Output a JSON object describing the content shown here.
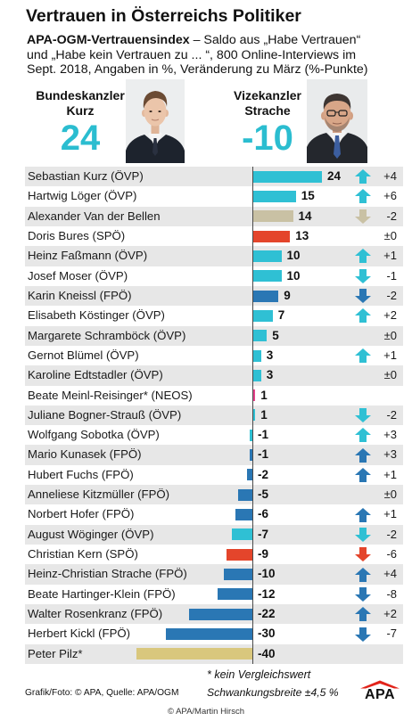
{
  "chart_data": {
    "type": "bar",
    "orientation": "horizontal",
    "title": "Vertrauen in Österreichs Politiker",
    "subtitle": {
      "bold": "APA-OGM-Vertrauensindex",
      "lines": [
        "– Saldo aus „Habe Vertrauen“",
        "und „Habe kein Vertrauen zu ... “, 800 Online-Interviews im",
        "Sept. 2018, Angaben in %, Veränderung zu März (%-Punkte)"
      ]
    },
    "xlim": [
      -40,
      24
    ],
    "grid": false,
    "categories": [
      "Sebastian Kurz (ÖVP)",
      "Hartwig Löger (ÖVP)",
      "Alexander Van der Bellen",
      "Doris Bures (SPÖ)",
      "Heinz Faßmann (ÖVP)",
      "Josef Moser (ÖVP)",
      "Karin Kneissl (FPÖ)",
      "Elisabeth Köstinger (ÖVP)",
      "Margarete Schramböck (ÖVP)",
      "Gernot Blümel (ÖVP)",
      "Karoline Edtstadler (ÖVP)",
      "Beate Meinl-Reisinger* (NEOS)",
      "Juliane Bogner-Strauß (ÖVP)",
      "Wolfgang Sobotka (ÖVP)",
      "Mario Kunasek (FPÖ)",
      "Hubert Fuchs (FPÖ)",
      "Anneliese Kitzmüller (FPÖ)",
      "Norbert Hofer (FPÖ)",
      "August Wöginger (ÖVP)",
      "Christian Kern (SPÖ)",
      "Heinz-Christian Strache (FPÖ)",
      "Beate Hartinger-Klein (FPÖ)",
      "Walter Rosenkranz (FPÖ)",
      "Herbert Kickl (FPÖ)",
      "Peter Pilz*"
    ],
    "values": [
      24,
      15,
      14,
      13,
      10,
      10,
      9,
      7,
      5,
      3,
      3,
      1,
      1,
      -1,
      -1,
      -2,
      -5,
      -6,
      -7,
      -9,
      -10,
      -12,
      -22,
      -30,
      -40
    ],
    "changes": [
      "+4",
      "+6",
      "-2",
      "±0",
      "+1",
      "-1",
      "-2",
      "+2",
      "±0",
      "+1",
      "±0",
      null,
      "-2",
      "+3",
      "+3",
      "+1",
      "±0",
      "+1",
      "-2",
      "-6",
      "+4",
      "-8",
      "+2",
      "-7",
      null
    ],
    "trends": [
      "up",
      "up",
      "down",
      null,
      "up",
      "down",
      "down",
      "up",
      null,
      "up",
      null,
      null,
      "down",
      "up",
      "up",
      "up",
      null,
      "up",
      "down",
      "down",
      "up",
      "down",
      "up",
      "down",
      null
    ],
    "colors": [
      "#2fc0d4",
      "#2fc0d4",
      "#c9c1a4",
      "#e4452b",
      "#2fc0d4",
      "#2fc0d4",
      "#2a77b4",
      "#2fc0d4",
      "#2fc0d4",
      "#2fc0d4",
      "#2fc0d4",
      "#e4438a",
      "#2fc0d4",
      "#2fc0d4",
      "#2a77b4",
      "#2a77b4",
      "#2a77b4",
      "#2a77b4",
      "#2fc0d4",
      "#e4452b",
      "#2a77b4",
      "#2a77b4",
      "#2a77b4",
      "#2a77b4",
      "#d9c77d"
    ]
  },
  "headline": {
    "chancellor": {
      "role": "Bundeskanzler",
      "name": "Kurz",
      "value": "24"
    },
    "vice": {
      "role": "Vizekanzler",
      "name": "Strache",
      "value": "-10"
    }
  },
  "footnote": "* kein Vergleichswert",
  "footer": {
    "source": "Grafik/Foto: © APA, Quelle: APA/OGM",
    "margin": "Schwankungsbreite ±4,5 %",
    "logo_text": "APA"
  },
  "credit": "© APA/Martin Hirsch",
  "colors": {
    "accent": "#2bbdd0",
    "logo_red": "#e2231a"
  }
}
